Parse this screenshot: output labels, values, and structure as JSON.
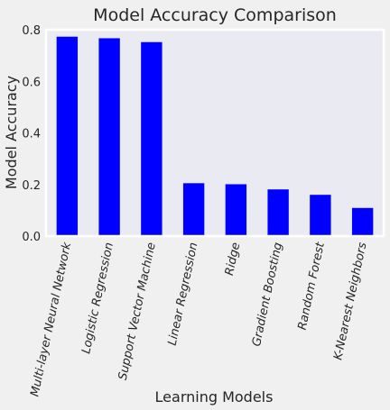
{
  "chart_data": {
    "type": "bar",
    "title": "Model Accuracy Comparison",
    "xlabel": "Learning Models",
    "ylabel": "Model Accuracy",
    "categories": [
      "Multi-layer Neural Network",
      "Logistic Regression",
      "Support Vector Machine",
      "Linear Regression",
      "Ridge",
      "Gradient Boosting",
      "Random Forest",
      "K-Nearest Neighbors"
    ],
    "values": [
      0.773,
      0.767,
      0.752,
      0.205,
      0.201,
      0.181,
      0.16,
      0.109
    ],
    "ylim": [
      0,
      0.8
    ],
    "yticks": [
      "0.0",
      "0.2",
      "0.4",
      "0.6",
      "0.8"
    ],
    "grid": false,
    "colors": {
      "bar": "#0000ff",
      "plot_background": "#eaeaf2",
      "figure_background": "#f0f0f0",
      "frame": "#ffffff"
    }
  }
}
